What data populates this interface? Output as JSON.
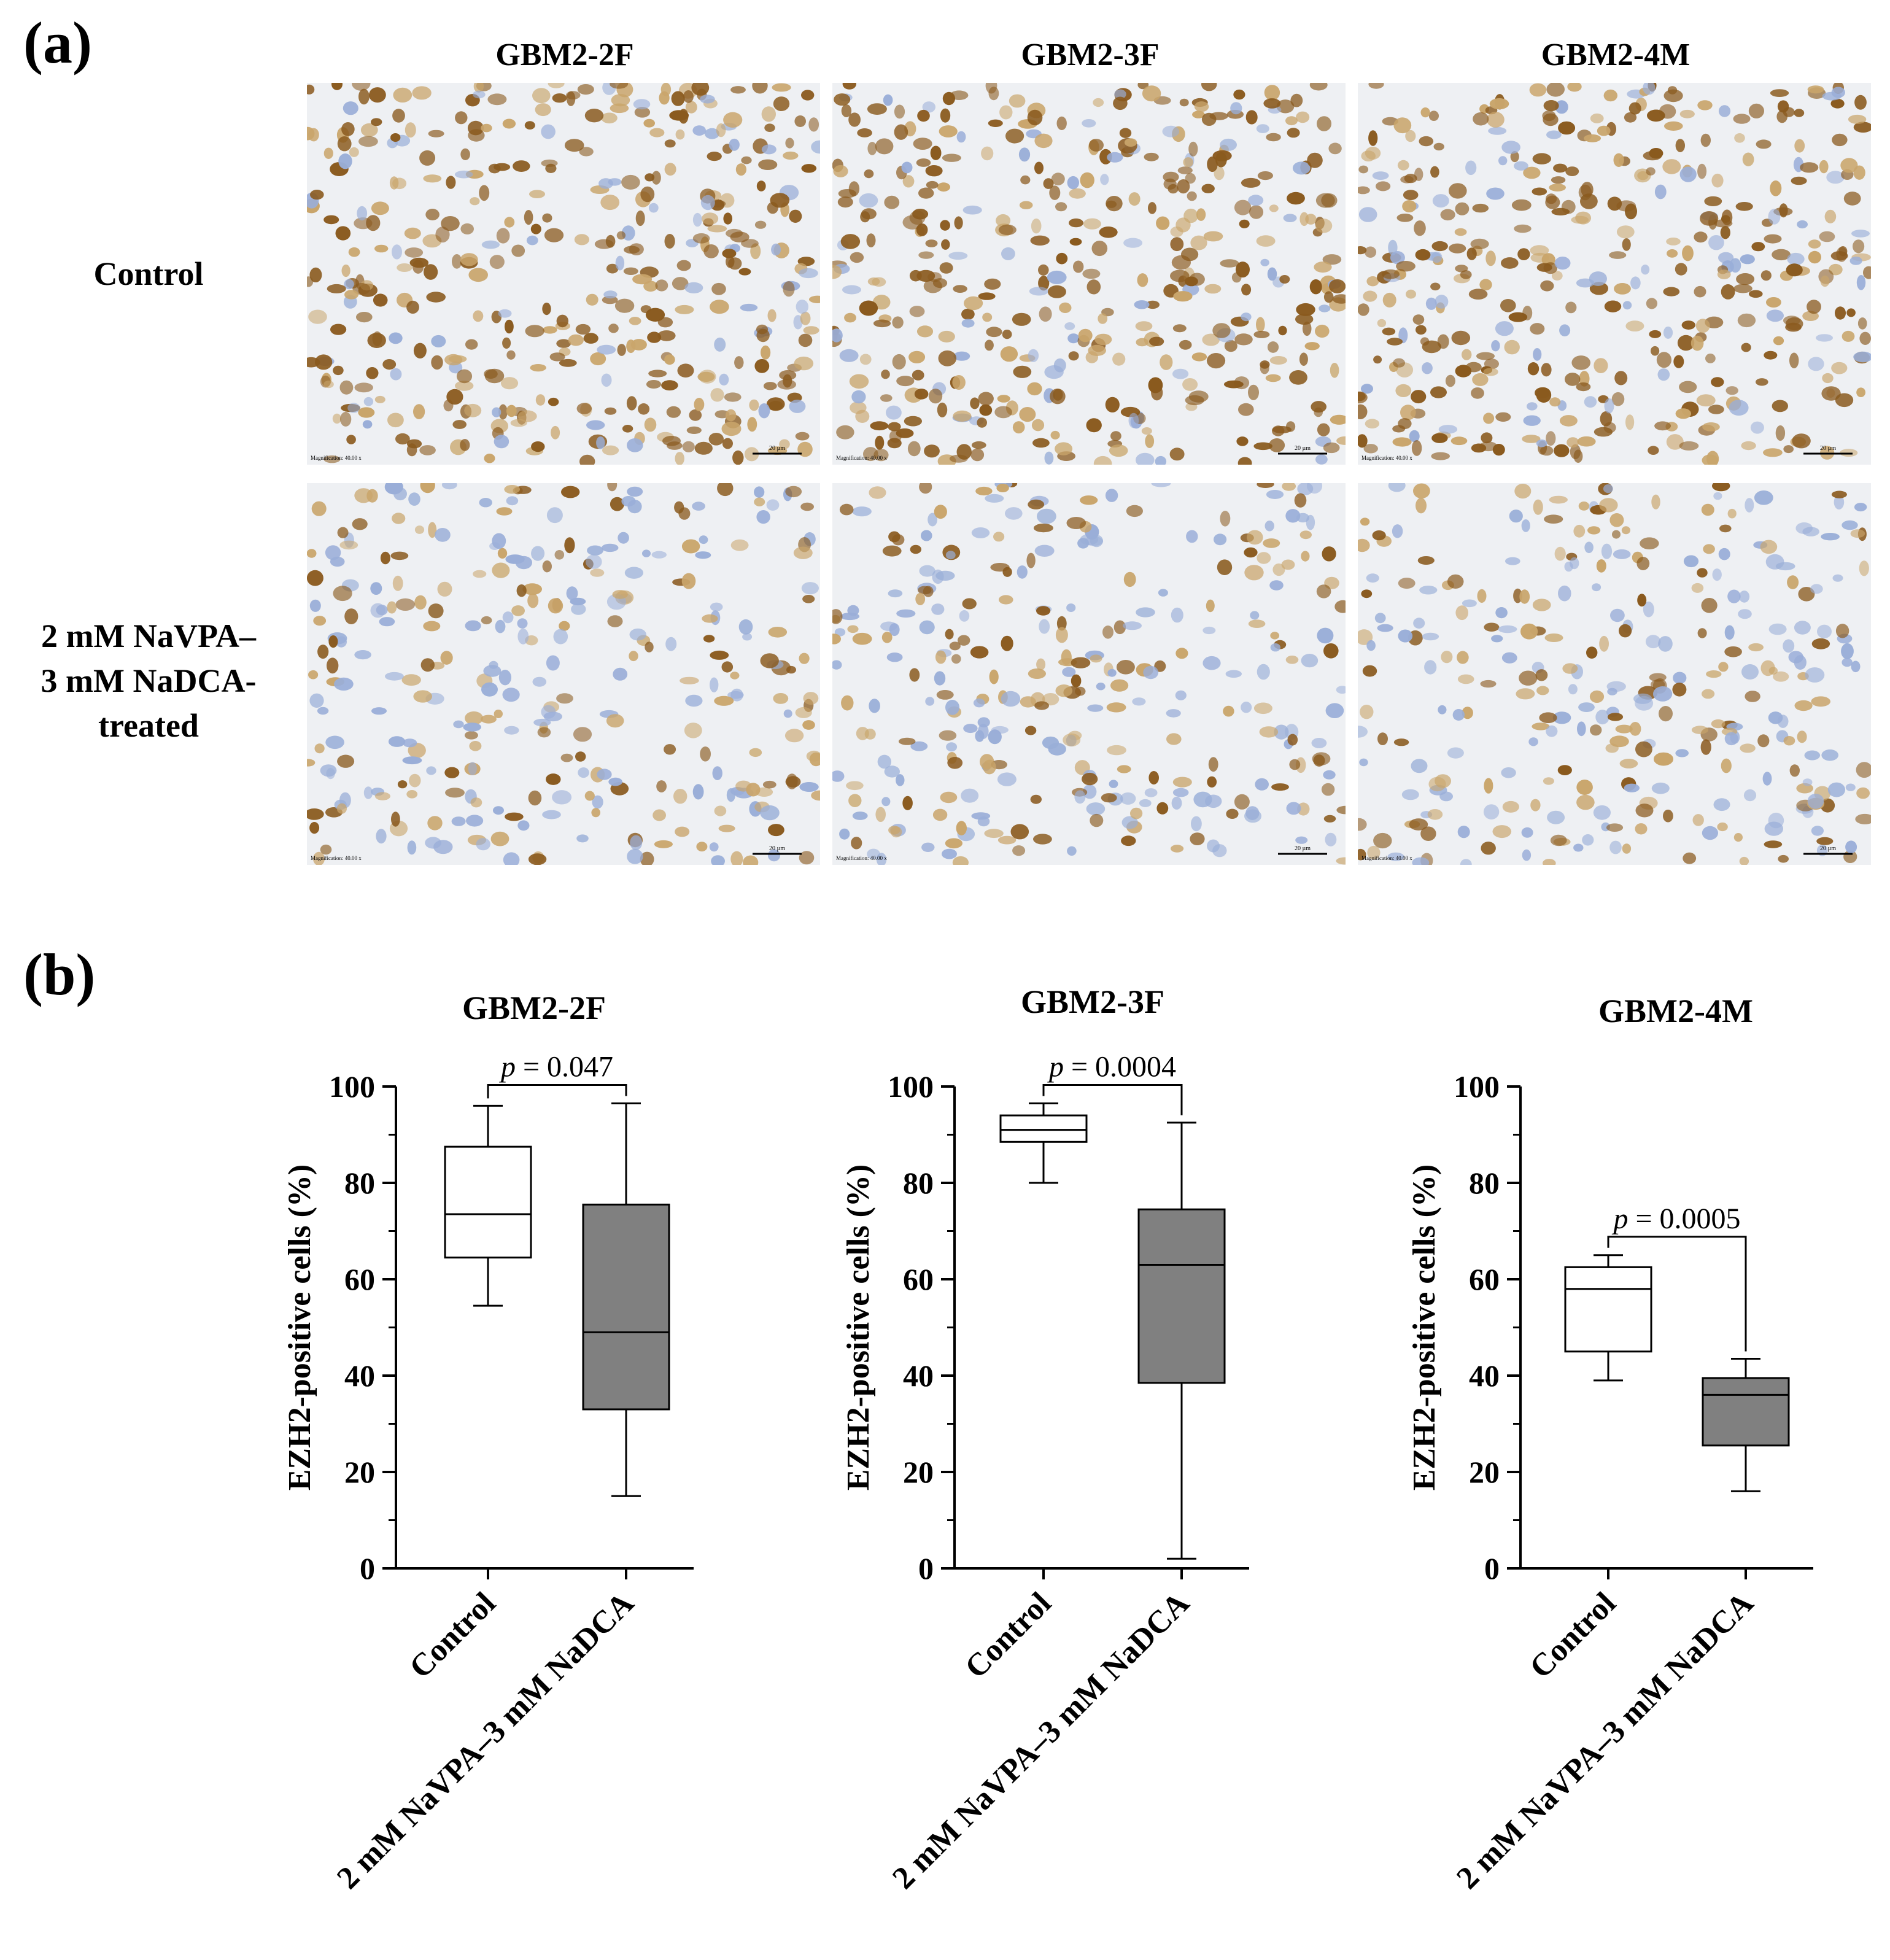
{
  "panels": {
    "a_label": "(a)",
    "b_label": "(b)"
  },
  "micrographs": {
    "columns": [
      "GBM2-2F",
      "GBM2-3F",
      "GBM2-4M"
    ],
    "rows": [
      {
        "label_lines": [
          "Control"
        ]
      },
      {
        "label_lines": [
          "2 mM NaVPA–",
          "3 mM NaDCA-",
          "treated"
        ]
      }
    ],
    "magnification_text": "Magnification: 40.00 x",
    "scale_bar_text": "20 µm",
    "colors": {
      "background": "#eef0f3",
      "stain_brown": "#8a5a1e",
      "stain_light": "#c9a56b",
      "counterstain_blue": "#9aaed8"
    }
  },
  "chart_data": [
    {
      "type": "box",
      "title": "GBM2-2F",
      "ylabel": "EZH2-positive cells (%)",
      "ylim": [
        0,
        100
      ],
      "yticks": [
        0,
        20,
        40,
        60,
        80,
        100
      ],
      "categories": [
        "Control",
        "2 mM NaVPA–3 mM NaDCA"
      ],
      "boxes": [
        {
          "min": 54.5,
          "q1": 64.5,
          "median": 73.5,
          "q3": 87.5,
          "max": 96,
          "fill": "#ffffff"
        },
        {
          "min": 15,
          "q1": 33,
          "median": 49,
          "q3": 75.5,
          "max": 96.5,
          "fill": "#808080"
        }
      ],
      "annotation": {
        "p_label": "p",
        "p_value": "= 0.047"
      }
    },
    {
      "type": "box",
      "title": "GBM2-3F",
      "ylabel": "EZH2-positive cells (%)",
      "ylim": [
        0,
        100
      ],
      "yticks": [
        0,
        20,
        40,
        60,
        80,
        100
      ],
      "categories": [
        "Control",
        "2 mM NaVPA–3 mM NaDCA"
      ],
      "boxes": [
        {
          "min": 80,
          "q1": 88.5,
          "median": 91,
          "q3": 94,
          "max": 96.5,
          "fill": "#ffffff"
        },
        {
          "min": 2,
          "q1": 38.5,
          "median": 63,
          "q3": 74.5,
          "max": 92.5,
          "fill": "#808080"
        }
      ],
      "annotation": {
        "p_label": "p",
        "p_value": "= 0.0004"
      }
    },
    {
      "type": "box",
      "title": "GBM2-4M",
      "ylabel": "EZH2-positive cells (%)",
      "ylim": [
        0,
        100
      ],
      "yticks": [
        0,
        20,
        40,
        60,
        80,
        100
      ],
      "categories": [
        "Control",
        "2 mM NaVPA–3 mM NaDCA"
      ],
      "boxes": [
        {
          "min": 39,
          "q1": 45,
          "median": 58,
          "q3": 62.5,
          "max": 65,
          "fill": "#ffffff"
        },
        {
          "min": 16,
          "q1": 25.5,
          "median": 36,
          "q3": 39.5,
          "max": 43.5,
          "fill": "#808080"
        }
      ],
      "annotation": {
        "p_label": "p",
        "p_value": "= 0.0005"
      }
    }
  ]
}
